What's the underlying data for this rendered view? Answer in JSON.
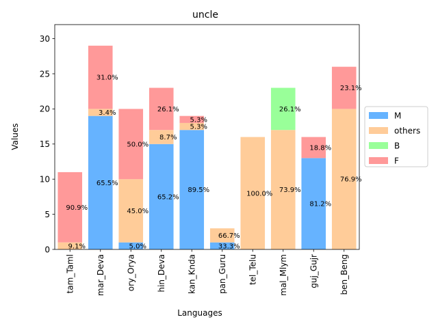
{
  "chart_data": {
    "type": "bar",
    "stacked": true,
    "title": "uncle",
    "xlabel": "Languages",
    "ylabel": "Values",
    "ylim": [
      0,
      32
    ],
    "yticks": [
      0,
      5,
      10,
      15,
      20,
      25,
      30
    ],
    "grid": false,
    "legend_position": "right",
    "categories": [
      "tam_Taml",
      "mar_Deva",
      "ory_Orya",
      "hin_Deva",
      "kan_Knda",
      "pan_Guru",
      "tel_Telu",
      "mal_Mlym",
      "guj_Gujr",
      "ben_Beng"
    ],
    "series": [
      {
        "name": "M",
        "color": "#66b3ff",
        "values": [
          0,
          19,
          1,
          15,
          17,
          1,
          0,
          0,
          13,
          0
        ],
        "labels": [
          "",
          "65.5%",
          "5.0%",
          "65.2%",
          "89.5%",
          "33.3%",
          "",
          "",
          "81.2%",
          ""
        ]
      },
      {
        "name": "others",
        "color": "#ffcc99",
        "values": [
          1,
          1,
          9,
          2,
          1,
          2,
          16,
          17,
          0,
          20
        ],
        "labels": [
          "9.1%",
          "3.4%",
          "45.0%",
          "8.7%",
          "5.3%",
          "66.7%",
          "100.0%",
          "73.9%",
          "",
          "76.9%"
        ]
      },
      {
        "name": "B",
        "color": "#99ff99",
        "values": [
          0,
          0,
          0,
          0,
          0,
          0,
          0,
          6,
          0,
          0
        ],
        "labels": [
          "",
          "",
          "",
          "",
          "",
          "",
          "",
          "26.1%",
          "",
          ""
        ]
      },
      {
        "name": "F",
        "color": "#ff9999",
        "values": [
          10,
          9,
          10,
          6,
          1,
          0,
          0,
          0,
          3,
          6
        ],
        "labels": [
          "90.9%",
          "31.0%",
          "50.0%",
          "26.1%",
          "5.3%",
          "",
          "",
          "",
          "18.8%",
          "23.1%"
        ]
      }
    ]
  }
}
